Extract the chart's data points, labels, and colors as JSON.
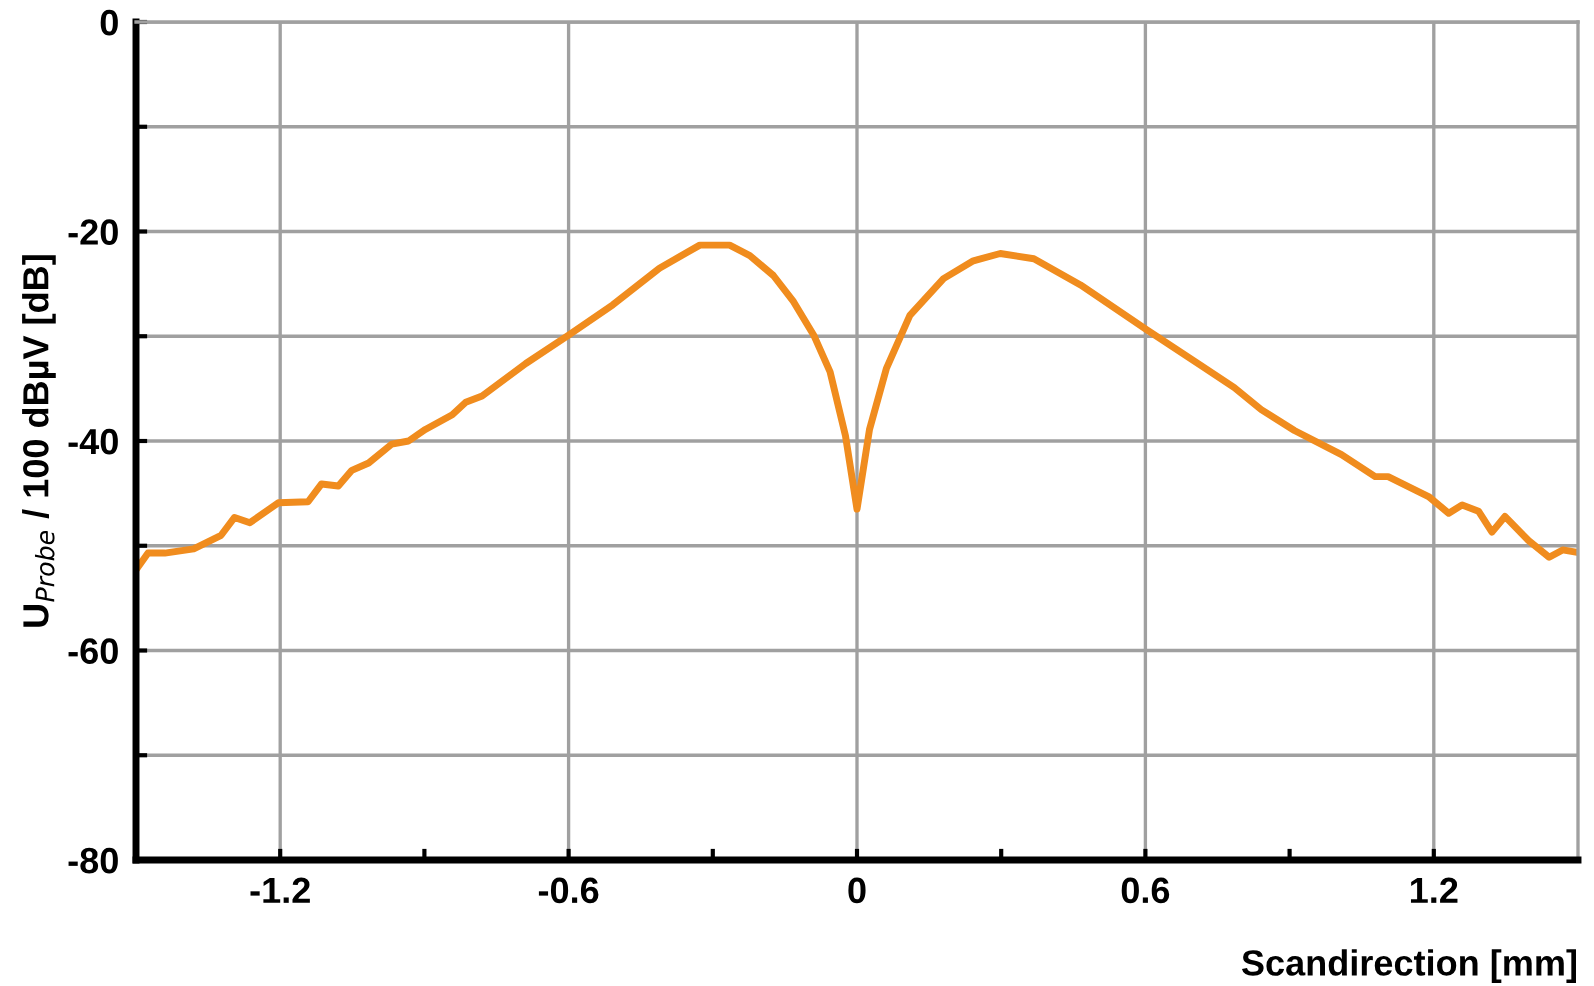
{
  "chart_data": {
    "type": "line",
    "xlabel": "Scandirection [mm]",
    "ylabel": "U$_{Probe}$ / 100 dBµV [dB]",
    "xlim": [
      -1.5,
      1.5
    ],
    "ylim": [
      -80,
      0
    ],
    "xticks": [
      -1.2,
      {
        "value": -0.9,
        "label": null
      },
      -0.6,
      {
        "value": -0.3,
        "label": null
      },
      0,
      {
        "value": 0.3,
        "label": null
      },
      0.6,
      {
        "value": 0.9,
        "label": null
      },
      1.2
    ],
    "yticks": [
      -80,
      {
        "value": -70,
        "label": null
      },
      -60,
      {
        "value": -50,
        "label": null
      },
      -40,
      {
        "value": -30,
        "label": null
      },
      -20,
      {
        "value": -10,
        "label": null
      },
      0
    ],
    "grid": true,
    "marker": "none",
    "line_style": "solid",
    "series": [
      {
        "color": "#f08c1e",
        "x": [
          -1.5,
          -1.475,
          -1.44,
          -1.38,
          -1.323,
          -1.295,
          -1.263,
          -1.204,
          -1.142,
          -1.114,
          -1.079,
          -1.051,
          -1.016,
          -0.968,
          -0.933,
          -0.898,
          -0.842,
          -0.814,
          -0.78,
          -0.689,
          -0.6,
          -0.508,
          -0.411,
          -0.327,
          -0.265,
          -0.223,
          -0.174,
          -0.132,
          -0.09,
          -0.056,
          -0.024,
          0,
          0.026,
          0.061,
          0.11,
          0.18,
          0.242,
          0.298,
          0.368,
          0.465,
          0.6,
          0.716,
          0.785,
          0.841,
          0.91,
          1.008,
          1.078,
          1.105,
          1.189,
          1.231,
          1.259,
          1.293,
          1.321,
          1.348,
          1.397,
          1.44,
          1.468,
          1.495
        ],
        "values": [
          -52.3,
          -50.7,
          -50.7,
          -50.3,
          -49.0,
          -47.3,
          -47.8,
          -45.9,
          -45.8,
          -44.1,
          -44.3,
          -42.8,
          -42.1,
          -40.3,
          -40.0,
          -38.9,
          -37.5,
          -36.3,
          -35.7,
          -32.6,
          -29.9,
          -27.0,
          -23.5,
          -21.3,
          -21.3,
          -22.3,
          -24.2,
          -26.7,
          -29.9,
          -33.4,
          -39.5,
          -46.5,
          -38.9,
          -33.1,
          -28.0,
          -24.5,
          -22.8,
          -22.1,
          -22.6,
          -25.1,
          -29.3,
          -32.8,
          -34.9,
          -37.0,
          -39.0,
          -41.3,
          -43.4,
          -43.4,
          -45.3,
          -46.9,
          -46.1,
          -46.7,
          -48.7,
          -47.2,
          -49.5,
          -51.1,
          -50.4,
          -50.6
        ]
      }
    ]
  }
}
